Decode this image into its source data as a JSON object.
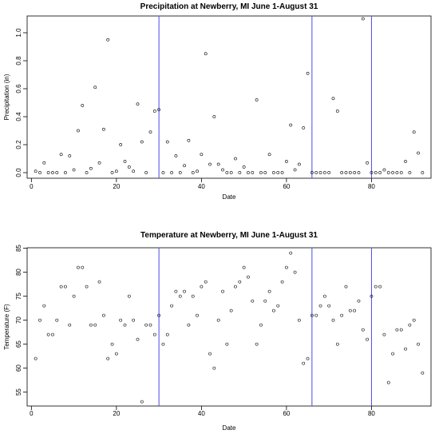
{
  "chart_data": [
    {
      "type": "scatter",
      "title": "Precipitation at Newberry, MI June 1-August 31",
      "xlabel": "Date",
      "ylabel": "Precipitation (in)",
      "xlim": [
        -1,
        94
      ],
      "ylim": [
        -0.04,
        1.12
      ],
      "xticks": [
        0,
        20,
        40,
        60,
        80
      ],
      "yticks": [
        0.0,
        0.2,
        0.4,
        0.6,
        0.8,
        1.0
      ],
      "ytick_labels": [
        "0.0",
        "0.2",
        "0.4",
        "0.6",
        "0.8",
        "1.0"
      ],
      "vlines": [
        30,
        66,
        80
      ],
      "vline_color": "#4a4ae8",
      "marker_color": "#000000",
      "x": [
        1,
        2,
        3,
        4,
        5,
        6,
        7,
        8,
        9,
        10,
        11,
        12,
        13,
        14,
        15,
        16,
        17,
        18,
        19,
        20,
        21,
        22,
        23,
        24,
        25,
        26,
        27,
        28,
        29,
        30,
        31,
        32,
        33,
        34,
        35,
        36,
        37,
        38,
        39,
        40,
        41,
        42,
        43,
        44,
        45,
        46,
        47,
        48,
        49,
        50,
        51,
        52,
        53,
        54,
        55,
        56,
        57,
        58,
        59,
        60,
        61,
        62,
        63,
        64,
        65,
        66,
        67,
        68,
        69,
        70,
        71,
        72,
        73,
        74,
        75,
        76,
        77,
        78,
        79,
        80,
        81,
        82,
        83,
        84,
        85,
        86,
        87,
        88,
        89,
        90,
        91,
        92
      ],
      "y": [
        0.01,
        0.0,
        0.07,
        0.0,
        0.0,
        0.0,
        0.13,
        0.0,
        0.12,
        0.02,
        0.3,
        0.48,
        0.0,
        0.03,
        0.61,
        0.07,
        0.31,
        0.95,
        0.0,
        0.01,
        0.2,
        0.08,
        0.04,
        0.01,
        0.49,
        0.22,
        0.0,
        0.29,
        0.44,
        0.45,
        0.0,
        0.22,
        0.0,
        0.12,
        0.0,
        0.05,
        0.23,
        0.0,
        0.01,
        0.13,
        0.85,
        0.06,
        0.4,
        0.06,
        0.02,
        0.0,
        0.0,
        0.1,
        0.0,
        0.04,
        0.0,
        0.0,
        0.52,
        0.0,
        0.0,
        0.13,
        0.0,
        0.0,
        0.0,
        0.08,
        0.34,
        0.02,
        0.06,
        0.32,
        0.71,
        0.0,
        0.0,
        0.0,
        0.0,
        0.0,
        0.53,
        0.44,
        0.0,
        0.0,
        0.0,
        0.0,
        0.0,
        1.1,
        0.07,
        0.0,
        0.0,
        0.0,
        0.02,
        0.0,
        0.0,
        0.0,
        0.0,
        0.08,
        0.0,
        0.29,
        0.14,
        0.0
      ]
    },
    {
      "type": "scatter",
      "title": "Temperature at Newberry, MI June 1-August 31",
      "xlabel": "Date",
      "ylabel": "Temperature (F)",
      "xlim": [
        -1,
        94
      ],
      "ylim": [
        52.1,
        85.1
      ],
      "xticks": [
        0,
        20,
        40,
        60,
        80
      ],
      "yticks": [
        55,
        60,
        65,
        70,
        75,
        80,
        85
      ],
      "ytick_labels": [
        "55",
        "60",
        "65",
        "70",
        "75",
        "80",
        "85"
      ],
      "vlines": [
        30,
        66,
        80
      ],
      "vline_color": "#4a4ae8",
      "marker_color": "#000000",
      "x": [
        1,
        2,
        3,
        4,
        5,
        6,
        7,
        8,
        9,
        10,
        11,
        12,
        13,
        14,
        15,
        16,
        17,
        18,
        19,
        20,
        21,
        22,
        23,
        24,
        25,
        26,
        27,
        28,
        29,
        30,
        31,
        32,
        33,
        34,
        35,
        36,
        37,
        38,
        39,
        40,
        41,
        42,
        43,
        44,
        45,
        46,
        47,
        48,
        49,
        50,
        51,
        52,
        53,
        54,
        55,
        56,
        57,
        58,
        59,
        60,
        61,
        62,
        63,
        64,
        65,
        66,
        67,
        68,
        69,
        70,
        71,
        72,
        73,
        74,
        75,
        76,
        77,
        78,
        79,
        80,
        81,
        82,
        83,
        84,
        85,
        86,
        87,
        88,
        89,
        90,
        91,
        92
      ],
      "y": [
        62,
        70,
        73,
        67,
        67,
        70,
        77,
        77,
        69,
        75,
        81,
        81,
        77,
        69,
        69,
        78,
        71,
        62,
        65,
        63,
        70,
        69,
        75,
        70,
        66,
        53,
        69,
        69,
        67,
        71,
        65,
        67,
        73,
        76,
        75,
        76,
        69,
        75,
        71,
        77,
        78,
        63,
        60,
        70,
        76,
        65,
        72,
        77,
        78,
        81,
        79,
        74,
        65,
        69,
        74,
        76,
        72,
        73,
        78,
        81,
        84,
        80,
        70,
        61,
        62,
        71,
        71,
        73,
        75,
        73,
        70,
        65,
        71,
        77,
        72,
        72,
        74,
        68,
        66,
        75,
        77,
        77,
        67,
        57,
        63,
        68,
        68,
        64,
        69,
        70,
        65,
        59
      ]
    }
  ]
}
